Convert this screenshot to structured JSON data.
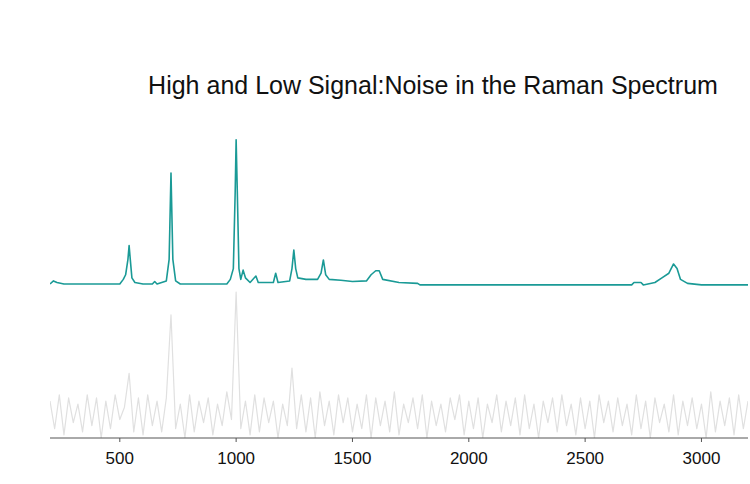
{
  "chart_data": {
    "type": "line",
    "title": "High and Low Signal:Noise in the Raman Spectrum",
    "xlim": [
      200,
      3200
    ],
    "xticks": [
      500,
      1000,
      1500,
      2000,
      2500,
      3000
    ],
    "ylim": [
      0,
      100
    ],
    "tick_labels": "x",
    "series": [
      {
        "color": "#1a9a96",
        "x": [
          200,
          215,
          230,
          260,
          500,
          515,
          525,
          535,
          540,
          545,
          552,
          565,
          600,
          640,
          650,
          660,
          700,
          712,
          720,
          728,
          740,
          760,
          800,
          960,
          975,
          988,
          996,
          1000,
          1005,
          1012,
          1020,
          1030,
          1040,
          1060,
          1085,
          1095,
          1160,
          1170,
          1180,
          1230,
          1240,
          1248,
          1256,
          1265,
          1300,
          1350,
          1365,
          1375,
          1385,
          1400,
          1450,
          1500,
          1560,
          1580,
          1600,
          1615,
          1630,
          1700,
          1780,
          1790,
          2700,
          2710,
          2740,
          2750,
          2800,
          2830,
          2860,
          2880,
          2895,
          2910,
          2940,
          3000,
          3200
        ],
        "values": [
          50,
          51,
          50.5,
          50,
          50,
          51.5,
          53,
          58,
          62.5,
          58,
          52,
          50.5,
          50,
          50,
          50.8,
          50,
          51,
          58,
          86,
          58,
          51,
          50,
          50,
          50,
          51.5,
          55,
          80,
          96.8,
          80,
          55,
          51.5,
          54.5,
          52,
          50.5,
          52.6,
          50.5,
          50.5,
          53.5,
          50.5,
          51,
          55,
          61,
          55,
          52,
          51.5,
          51.5,
          53.5,
          57.8,
          53,
          51.5,
          51.2,
          50.8,
          51,
          53,
          54.3,
          54.3,
          51.5,
          50.5,
          50.2,
          49.7,
          49.7,
          50.5,
          50.5,
          49.7,
          50.5,
          52,
          53.5,
          56.5,
          55,
          51.5,
          50.2,
          49.7,
          49.7
        ]
      },
      {
        "color": "#e0e0e0",
        "x": [
          200,
          220,
          240,
          260,
          280,
          300,
          320,
          340,
          360,
          380,
          400,
          420,
          440,
          460,
          480,
          500,
          520,
          540,
          560,
          580,
          600,
          620,
          640,
          660,
          680,
          700,
          720,
          740,
          760,
          780,
          800,
          820,
          840,
          860,
          880,
          900,
          920,
          940,
          960,
          980,
          1000,
          1020,
          1040,
          1060,
          1080,
          1100,
          1120,
          1140,
          1160,
          1180,
          1200,
          1220,
          1240,
          1260,
          1280,
          1300,
          1320,
          1340,
          1360,
          1380,
          1400,
          1420,
          1440,
          1460,
          1480,
          1500,
          1520,
          1540,
          1560,
          1580,
          1600,
          1620,
          1640,
          1660,
          1680,
          1700,
          1720,
          1740,
          1760,
          1780,
          1800,
          1820,
          1840,
          1860,
          1880,
          1900,
          1920,
          1940,
          1960,
          1980,
          2000,
          2020,
          2040,
          2060,
          2080,
          2100,
          2120,
          2140,
          2160,
          2180,
          2200,
          2220,
          2240,
          2260,
          2280,
          2300,
          2320,
          2340,
          2360,
          2380,
          2400,
          2420,
          2440,
          2460,
          2480,
          2500,
          2520,
          2540,
          2560,
          2580,
          2600,
          2620,
          2640,
          2660,
          2680,
          2700,
          2720,
          2740,
          2760,
          2780,
          2800,
          2820,
          2840,
          2860,
          2880,
          2900,
          2920,
          2940,
          2960,
          2980,
          3000,
          3020,
          3040,
          3060,
          3080,
          3100,
          3120,
          3140,
          3160,
          3180,
          3200
        ],
        "values": [
          12,
          3,
          14,
          1,
          13,
          5,
          11,
          2,
          14,
          4,
          13,
          0,
          12,
          3,
          14,
          6,
          10,
          21,
          2,
          13,
          1,
          14,
          4,
          12,
          2,
          13,
          40,
          3,
          11,
          0,
          14,
          2,
          12,
          5,
          13,
          1,
          11,
          4,
          15,
          6,
          47.4,
          3,
          12,
          1,
          14,
          2,
          13,
          5,
          12,
          0,
          11,
          4,
          22.7,
          3,
          14,
          2,
          13,
          0,
          15,
          4,
          12,
          1,
          14,
          5,
          13,
          2,
          11,
          3,
          14,
          0,
          13,
          4,
          12,
          2,
          15,
          1,
          11,
          5,
          13,
          3,
          14,
          0,
          12,
          4,
          11,
          2,
          13,
          6,
          14,
          1,
          12,
          3,
          13,
          0,
          11,
          5,
          14,
          2,
          12,
          4,
          13,
          1,
          14,
          3,
          11,
          0,
          12,
          5,
          13,
          2,
          14,
          4,
          11,
          1,
          13,
          3,
          12,
          0,
          14,
          5,
          12,
          2,
          13,
          4,
          11,
          1,
          14,
          3,
          12,
          0,
          13,
          5,
          11,
          2,
          14,
          1,
          12,
          4,
          13,
          3,
          11,
          0,
          15,
          2,
          12,
          4,
          13,
          1,
          14,
          3,
          12
        ]
      }
    ]
  }
}
